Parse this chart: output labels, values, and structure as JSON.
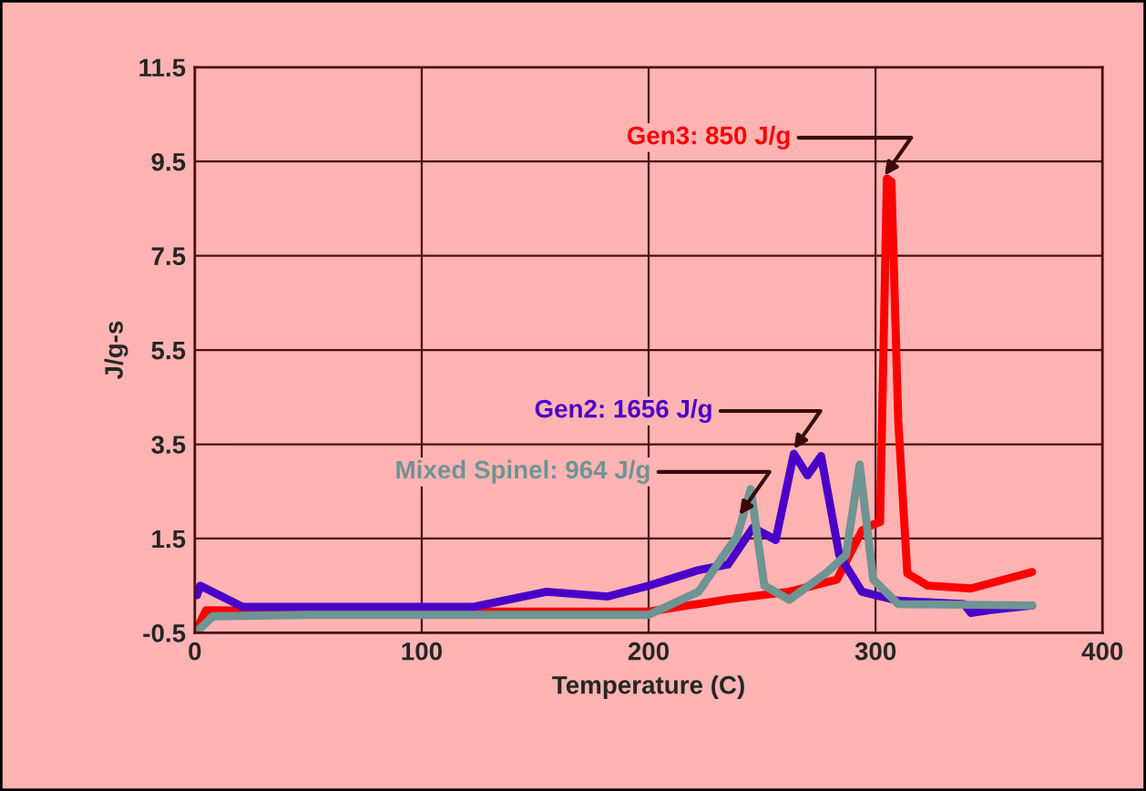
{
  "chart_data": {
    "type": "line",
    "xlabel": "Temperature (C)",
    "ylabel": "J/g-s",
    "xlim": [
      0,
      400
    ],
    "xticks": [
      0,
      100,
      200,
      300,
      400
    ],
    "ylim": [
      -0.5,
      11.5
    ],
    "yticks": [
      -0.5,
      1.5,
      3.5,
      5.5,
      7.5,
      9.5,
      11.5
    ],
    "grid": true,
    "legend": false,
    "marker": "none",
    "line_style": "solid",
    "series": [
      {
        "color": "#ff0000",
        "x": [
          1,
          5,
          50,
          100,
          150,
          200,
          235,
          262,
          283,
          294,
          299,
          302,
          305,
          307,
          310,
          314,
          323,
          342,
          369
        ],
        "values": [
          -0.41,
          -0.02,
          -0.05,
          -0.05,
          -0.05,
          -0.05,
          0.21,
          0.37,
          0.63,
          1.67,
          1.8,
          1.85,
          9.14,
          9.07,
          4.0,
          0.76,
          0.5,
          0.44,
          0.79
        ]
      },
      {
        "color": "#4b00c8",
        "x": [
          1,
          2.4,
          21,
          60,
          123,
          155,
          182,
          200,
          222,
          235,
          246,
          256,
          264,
          270,
          276,
          284,
          294,
          310,
          339,
          342,
          350,
          369
        ],
        "values": [
          0.3,
          0.5,
          0.05,
          0.05,
          0.05,
          0.37,
          0.27,
          0.5,
          0.83,
          0.95,
          1.73,
          1.47,
          3.3,
          2.84,
          3.25,
          1.15,
          0.37,
          0.18,
          0.11,
          -0.08,
          -0.02,
          0.08
        ]
      },
      {
        "color": "#6e9494",
        "x": [
          1,
          8,
          50,
          100,
          150,
          200,
          222,
          235,
          239,
          245,
          251,
          262,
          278,
          287,
          293,
          299,
          310,
          369
        ],
        "values": [
          -0.47,
          -0.15,
          -0.12,
          -0.12,
          -0.12,
          -0.12,
          0.37,
          1.28,
          1.54,
          2.55,
          0.5,
          0.2,
          0.76,
          1.15,
          3.07,
          0.63,
          0.11,
          0.08
        ]
      }
    ],
    "annotations": [
      {
        "text": "Gen3: 850 J/g",
        "x": 304,
        "y": 9.2
      },
      {
        "text": "Gen2: 1656 J/g",
        "x": 264,
        "y": 3.4
      },
      {
        "text": "Mixed Spinel: 964 J/g",
        "x": 240,
        "y": 2.0
      }
    ]
  }
}
